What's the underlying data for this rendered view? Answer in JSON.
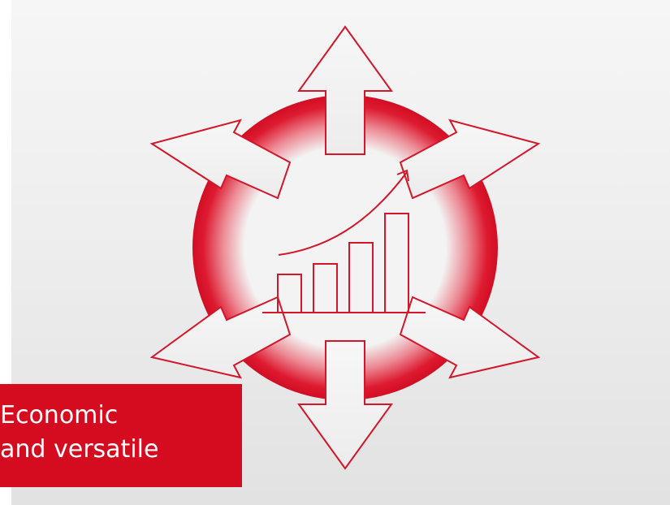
{
  "caption": {
    "line1": "Economic",
    "line2": "and versatile"
  },
  "colors": {
    "accent": "#d50b20",
    "outline": "#d4162a",
    "background_top": "#f6f6f6",
    "background_bottom": "#e2e2e2",
    "caption_text": "#ffffff"
  },
  "emblem": {
    "icon": "growth-hub-icon",
    "arrow_count": 6,
    "bar_count": 4,
    "trend": "upward"
  }
}
